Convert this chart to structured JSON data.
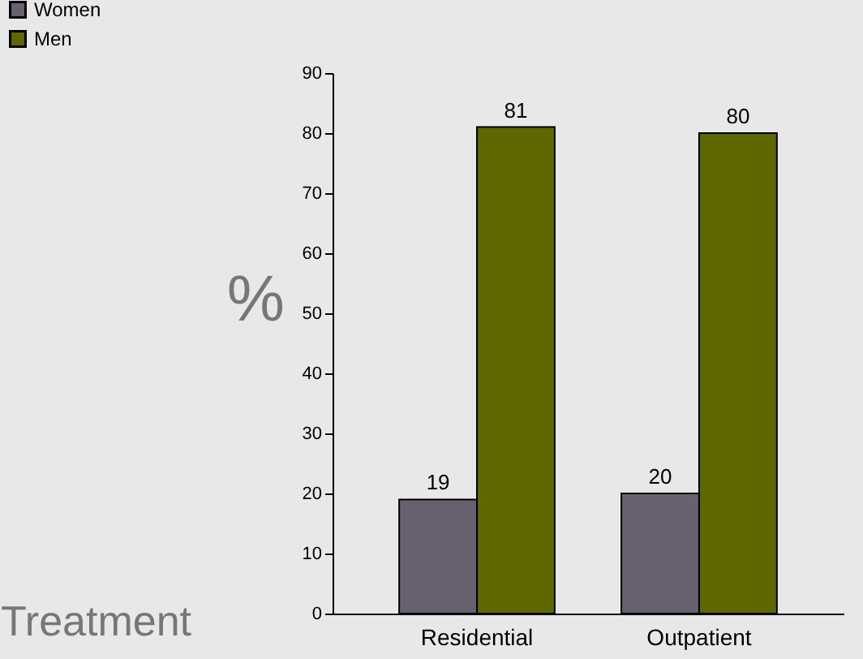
{
  "chart_data": {
    "type": "bar",
    "xlabel": "Treatment",
    "ylabel": "%",
    "categories": [
      "Residential",
      "Outpatient"
    ],
    "series": [
      {
        "name": "Women",
        "color": "#696170",
        "values": [
          19,
          20
        ]
      },
      {
        "name": "Men",
        "color": "#5f6800",
        "values": [
          81,
          80
        ]
      }
    ],
    "ylim": [
      0,
      90
    ],
    "yticks": [
      0,
      10,
      20,
      30,
      40,
      50,
      60,
      70,
      80,
      90
    ],
    "data_labels": true,
    "grid": false,
    "legend": "top left"
  }
}
